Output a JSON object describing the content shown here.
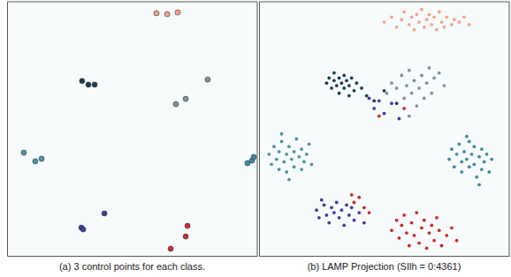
{
  "chart_data": [
    {
      "type": "scatter",
      "title": "(a) 3 control points for each class.",
      "xlim": [
        0,
        100
      ],
      "ylim": [
        0,
        100
      ],
      "tick_labels": false,
      "marker": "circle",
      "series": [
        {
          "color": "#f3a58a",
          "x": [
            59.7,
            64.0,
            68.2
          ],
          "values": [
            95.5,
            95.1,
            95.8
          ]
        },
        {
          "color": "#1b3d50",
          "x": [
            30.0,
            32.5,
            35.0
          ],
          "values": [
            68.8,
            67.4,
            67.4
          ]
        },
        {
          "color": "#7b9694",
          "x": [
            67.5,
            71.4,
            80.2
          ],
          "values": [
            59.7,
            61.8,
            69.4
          ]
        },
        {
          "color": "#4e93a3",
          "x": [
            6.7,
            11.3,
            13.8
          ],
          "values": [
            40.6,
            37.2,
            38.2
          ]
        },
        {
          "color": "#3e8aa0",
          "x": [
            96.1,
            97.9,
            98.6
          ],
          "values": [
            36.5,
            37.5,
            38.9
          ]
        },
        {
          "color": "#3b3ea0",
          "x": [
            29.7,
            30.4,
            38.9
          ],
          "values": [
            11.1,
            10.4,
            16.7
          ]
        },
        {
          "color": "#cc2a2a",
          "x": [
            65.4,
            71.4,
            72.1
          ],
          "values": [
            2.8,
            7.6,
            11.8
          ]
        }
      ]
    },
    {
      "type": "scatter",
      "title": "(b) LAMP Projection (SIlh = 0:4361)",
      "xlim": [
        0,
        100
      ],
      "ylim": [
        0,
        100
      ],
      "tick_labels": false,
      "marker": "dot",
      "series": [
        {
          "color": "#f3a58a",
          "x": [
            50,
            53,
            55,
            57,
            58,
            60,
            61,
            62,
            63,
            64,
            65,
            66,
            67,
            68,
            69,
            70,
            71,
            72,
            73,
            74,
            75,
            77,
            78,
            80,
            82,
            84
          ],
          "values": [
            92,
            94,
            90,
            93,
            96,
            91,
            94,
            89,
            95,
            92,
            97,
            90,
            93,
            95,
            91,
            94,
            89,
            96,
            92,
            90,
            94,
            91,
            93,
            92,
            94,
            91
          ]
        },
        {
          "color": "#1b3d50",
          "x": [
            27,
            28,
            29,
            30,
            30,
            31,
            32,
            32,
            33,
            34,
            34,
            35,
            36,
            37,
            38,
            39,
            36,
            41,
            43,
            46,
            50,
            55
          ],
          "values": [
            68,
            70,
            66,
            69,
            72,
            67,
            70,
            64,
            68,
            71,
            66,
            69,
            67,
            70,
            65,
            68,
            63,
            66,
            63,
            61,
            65,
            60
          ]
        },
        {
          "color": "#7b9694",
          "x": [
            51,
            53,
            55,
            57,
            58,
            59,
            60,
            61,
            62,
            63,
            64,
            65,
            66,
            67,
            68,
            69,
            70,
            72,
            74,
            60
          ],
          "values": [
            64,
            68,
            66,
            71,
            62,
            67,
            73,
            64,
            69,
            59,
            66,
            71,
            62,
            68,
            74,
            64,
            70,
            72,
            67,
            55
          ]
        },
        {
          "color": "#4e93a3",
          "x": [
            4,
            5,
            6,
            7,
            8,
            8,
            9,
            10,
            11,
            11,
            12,
            13,
            14,
            14,
            15,
            16,
            17,
            17,
            18,
            19,
            20,
            21,
            12,
            9
          ],
          "values": [
            40,
            36,
            43,
            38,
            34,
            41,
            45,
            37,
            40,
            33,
            43,
            38,
            35,
            41,
            46,
            39,
            34,
            42,
            37,
            40,
            44,
            36,
            30,
            48
          ]
        },
        {
          "color": "#3e8aa0",
          "x": [
            76,
            77,
            78,
            79,
            80,
            81,
            81,
            82,
            83,
            84,
            84,
            85,
            86,
            86,
            87,
            88,
            89,
            89,
            90,
            91,
            92,
            93,
            88,
            83
          ],
          "values": [
            38,
            42,
            35,
            40,
            44,
            37,
            33,
            41,
            38,
            45,
            35,
            40,
            36,
            43,
            31,
            39,
            42,
            34,
            37,
            40,
            33,
            38,
            28,
            47
          ]
        },
        {
          "color": "#3b3ea0",
          "x": [
            23,
            24,
            26,
            27,
            28,
            29,
            30,
            31,
            32,
            33,
            34,
            35,
            36,
            37,
            38,
            40,
            42,
            25,
            46,
            48,
            50,
            53,
            56,
            44
          ],
          "values": [
            18,
            15,
            20,
            16,
            13,
            19,
            17,
            21,
            15,
            18,
            12,
            20,
            16,
            19,
            14,
            17,
            13,
            22,
            58,
            61,
            56,
            60,
            54,
            62
          ]
        },
        {
          "color": "#cc2a2a",
          "x": [
            53,
            55,
            56,
            57,
            58,
            59,
            60,
            61,
            62,
            63,
            64,
            65,
            66,
            67,
            68,
            69,
            70,
            71,
            72,
            73,
            75,
            77,
            79,
            38,
            40,
            42,
            37,
            44,
            58,
            48
          ],
          "values": [
            10,
            14,
            7,
            12,
            16,
            9,
            4,
            13,
            8,
            17,
            5,
            11,
            14,
            3,
            9,
            12,
            6,
            15,
            10,
            4,
            8,
            11,
            6,
            21,
            23,
            19,
            24,
            17,
            58,
            55
          ]
        }
      ]
    }
  ]
}
